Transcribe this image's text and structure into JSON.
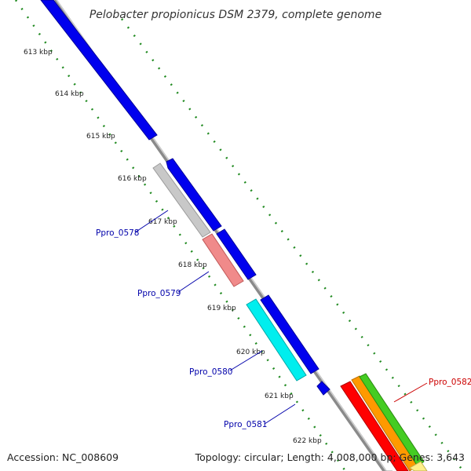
{
  "title": "Pelobacter propionicus DSM 2379, complete genome",
  "kbp_labels": [
    "613 kbp",
    "614 kbp",
    "615 kbp",
    "616 kbp",
    "617 kbp",
    "618 kbp",
    "619 kbp",
    "620 kbp",
    "621 kbp",
    "622 kbp"
  ],
  "gene_labels": [
    "Ppro_0578",
    "Ppro_0579",
    "Ppro_0580",
    "Ppro_0581",
    "Ppro_0582"
  ],
  "footer": {
    "accession": "Accession: NC_008609",
    "summary": "Topology: circular; Length: 4,008,000 bp; Genes: 3,643"
  },
  "colors": {
    "forward_cds": "#0000ee",
    "gray_cds": "#c8c8c8",
    "pink_cds": "#f08a8a",
    "cyan_cds": "#00eeee",
    "red_cds": "#ff0000",
    "orange_cds": "#ff9900",
    "green_cds": "#44cc22",
    "yellow_cds": "#ffee88",
    "backbone": "#999999",
    "tick": "#228b22",
    "label_blue": "#0000aa",
    "label_red": "#cc0000"
  },
  "icons": [
    "forward-strand-arrow",
    "backbone-ring"
  ]
}
